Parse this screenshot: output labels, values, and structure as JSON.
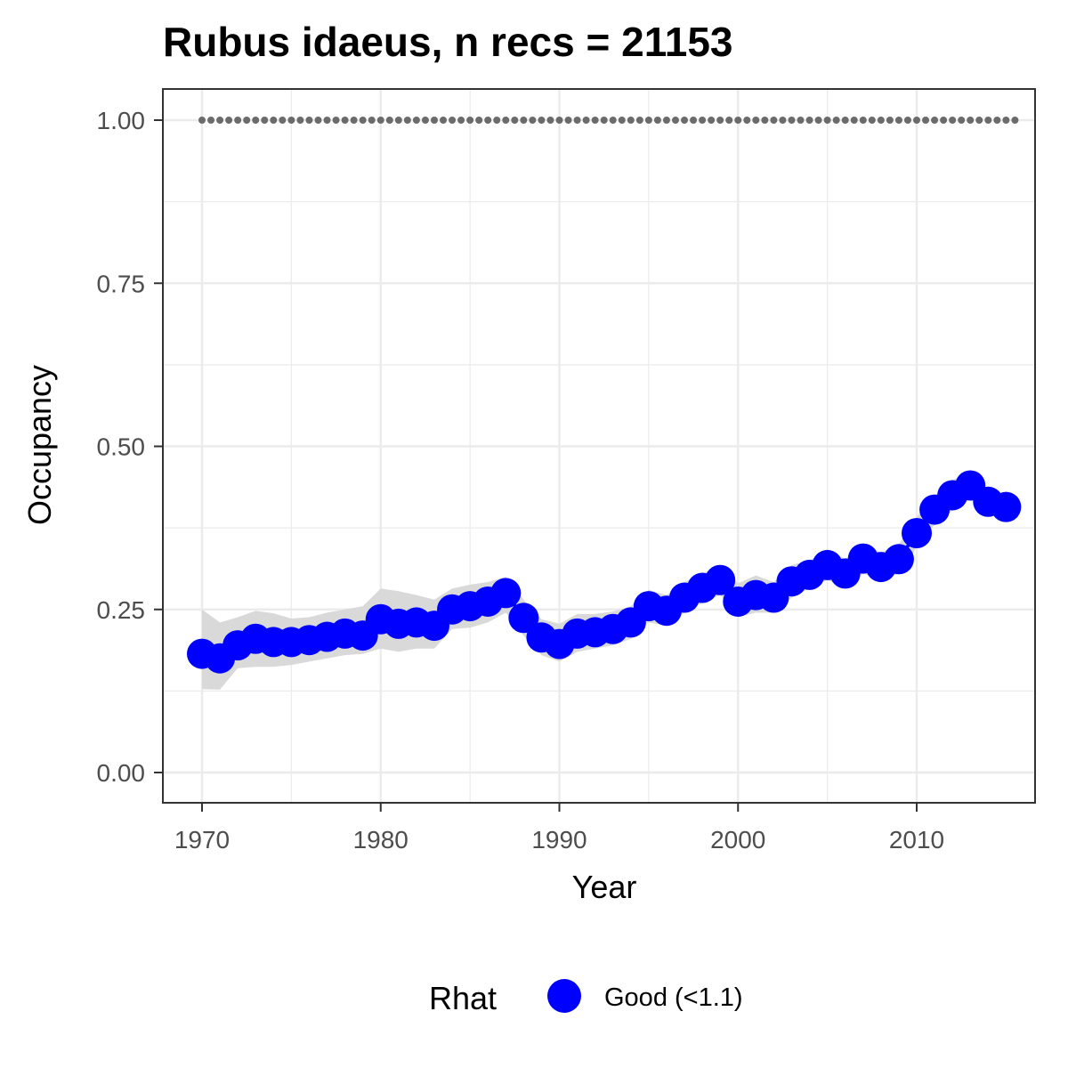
{
  "chart_data": {
    "type": "line",
    "title": "Rubus idaeus, n recs = 21153",
    "xlabel": "Year",
    "ylabel": "Occupancy",
    "xlim": [
      1968,
      2017
    ],
    "ylim": [
      -0.045,
      1.045
    ],
    "x_ticks": [
      1970,
      1980,
      1990,
      2000,
      2010
    ],
    "y_ticks": [
      0.0,
      0.25,
      0.5,
      0.75,
      1.0
    ],
    "y_tick_labels": [
      "0.00",
      "0.25",
      "0.50",
      "0.75",
      "1.00"
    ],
    "grid": true,
    "legend": {
      "title": "Rhat",
      "position": "bottom",
      "entries": [
        {
          "label": "Good (<1.1)",
          "color": "#0000ff"
        }
      ]
    },
    "reference_line": {
      "y": 1.0,
      "style": "dotted",
      "color": "#6b6b6b"
    },
    "series": [
      {
        "name": "Good (<1.1)",
        "color": "#0000ff",
        "ribbon_color": "#d9d9d9",
        "x": [
          1970,
          1971,
          1972,
          1973,
          1974,
          1975,
          1976,
          1977,
          1978,
          1979,
          1980,
          1981,
          1982,
          1983,
          1984,
          1985,
          1986,
          1987,
          1988,
          1989,
          1990,
          1991,
          1992,
          1993,
          1994,
          1995,
          1996,
          1997,
          1998,
          1999,
          2000,
          2001,
          2002,
          2003,
          2004,
          2005,
          2006,
          2007,
          2008,
          2009,
          2010,
          2011,
          2012,
          2013,
          2014,
          2015
        ],
        "y": [
          0.182,
          0.175,
          0.195,
          0.205,
          0.2,
          0.2,
          0.203,
          0.208,
          0.213,
          0.21,
          0.235,
          0.228,
          0.23,
          0.225,
          0.25,
          0.255,
          0.262,
          0.275,
          0.237,
          0.207,
          0.197,
          0.213,
          0.215,
          0.22,
          0.23,
          0.255,
          0.248,
          0.268,
          0.283,
          0.295,
          0.262,
          0.272,
          0.268,
          0.293,
          0.303,
          0.318,
          0.305,
          0.328,
          0.315,
          0.327,
          0.367,
          0.403,
          0.425,
          0.44,
          0.415,
          0.407
        ],
        "lower": [
          0.128,
          0.127,
          0.16,
          0.162,
          0.162,
          0.165,
          0.17,
          0.175,
          0.18,
          0.182,
          0.19,
          0.185,
          0.19,
          0.19,
          0.22,
          0.222,
          0.23,
          0.245,
          0.21,
          0.18,
          0.17,
          0.185,
          0.19,
          0.195,
          0.205,
          0.23,
          0.225,
          0.245,
          0.26,
          0.272,
          0.238,
          0.245,
          0.245,
          0.268,
          0.282,
          0.295,
          0.285,
          0.305,
          0.295,
          0.305,
          0.345,
          0.38,
          0.402,
          0.418,
          0.398,
          0.388
        ],
        "upper": [
          0.25,
          0.23,
          0.238,
          0.248,
          0.244,
          0.236,
          0.238,
          0.245,
          0.25,
          0.255,
          0.282,
          0.278,
          0.272,
          0.265,
          0.282,
          0.288,
          0.292,
          0.3,
          0.265,
          0.235,
          0.228,
          0.243,
          0.243,
          0.247,
          0.255,
          0.28,
          0.272,
          0.292,
          0.305,
          0.318,
          0.29,
          0.302,
          0.292,
          0.318,
          0.325,
          0.342,
          0.327,
          0.35,
          0.337,
          0.35,
          0.392,
          0.425,
          0.448,
          0.462,
          0.432,
          0.426
        ]
      }
    ]
  }
}
